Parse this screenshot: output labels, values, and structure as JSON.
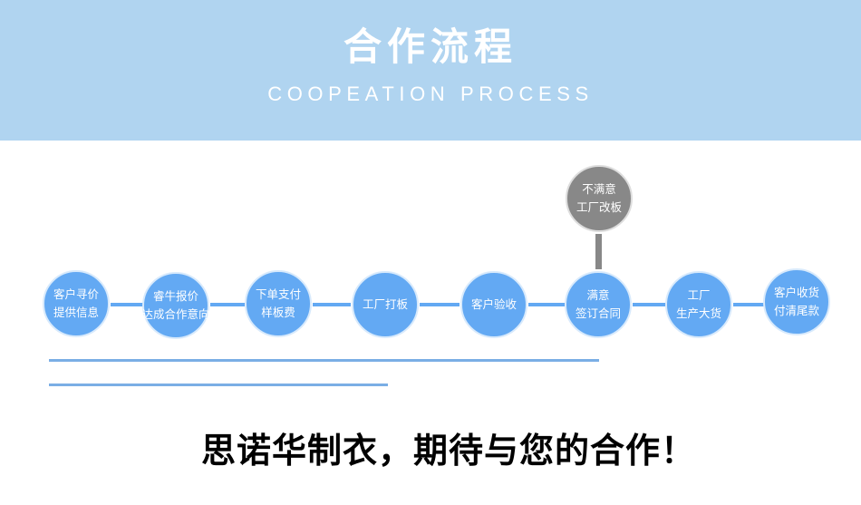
{
  "header": {
    "title": "合作流程",
    "subtitle": "COOPEATION PROCESS",
    "background_color": "#b0d4f0"
  },
  "steps": [
    {
      "line1": "客户寻价",
      "line2": "提供信息"
    },
    {
      "line1": "睿牛报价",
      "line2": "达成合作意向"
    },
    {
      "line1": "下单支付",
      "line2": "样板费"
    },
    {
      "line1": "工厂打板",
      "line2": ""
    },
    {
      "line1": "客户验收",
      "line2": ""
    },
    {
      "line1": "满意",
      "line2": "签订合同"
    },
    {
      "line1": "工厂",
      "line2": "生产大货"
    },
    {
      "line1": "客户收货",
      "line2": "付清尾款"
    }
  ],
  "branch": {
    "line1": "不满意",
    "line2": "工厂改板"
  },
  "colors": {
    "step": "#63a9f3",
    "branch": "#888888"
  },
  "slogan": "思诺华制衣，期待与您的合作！"
}
